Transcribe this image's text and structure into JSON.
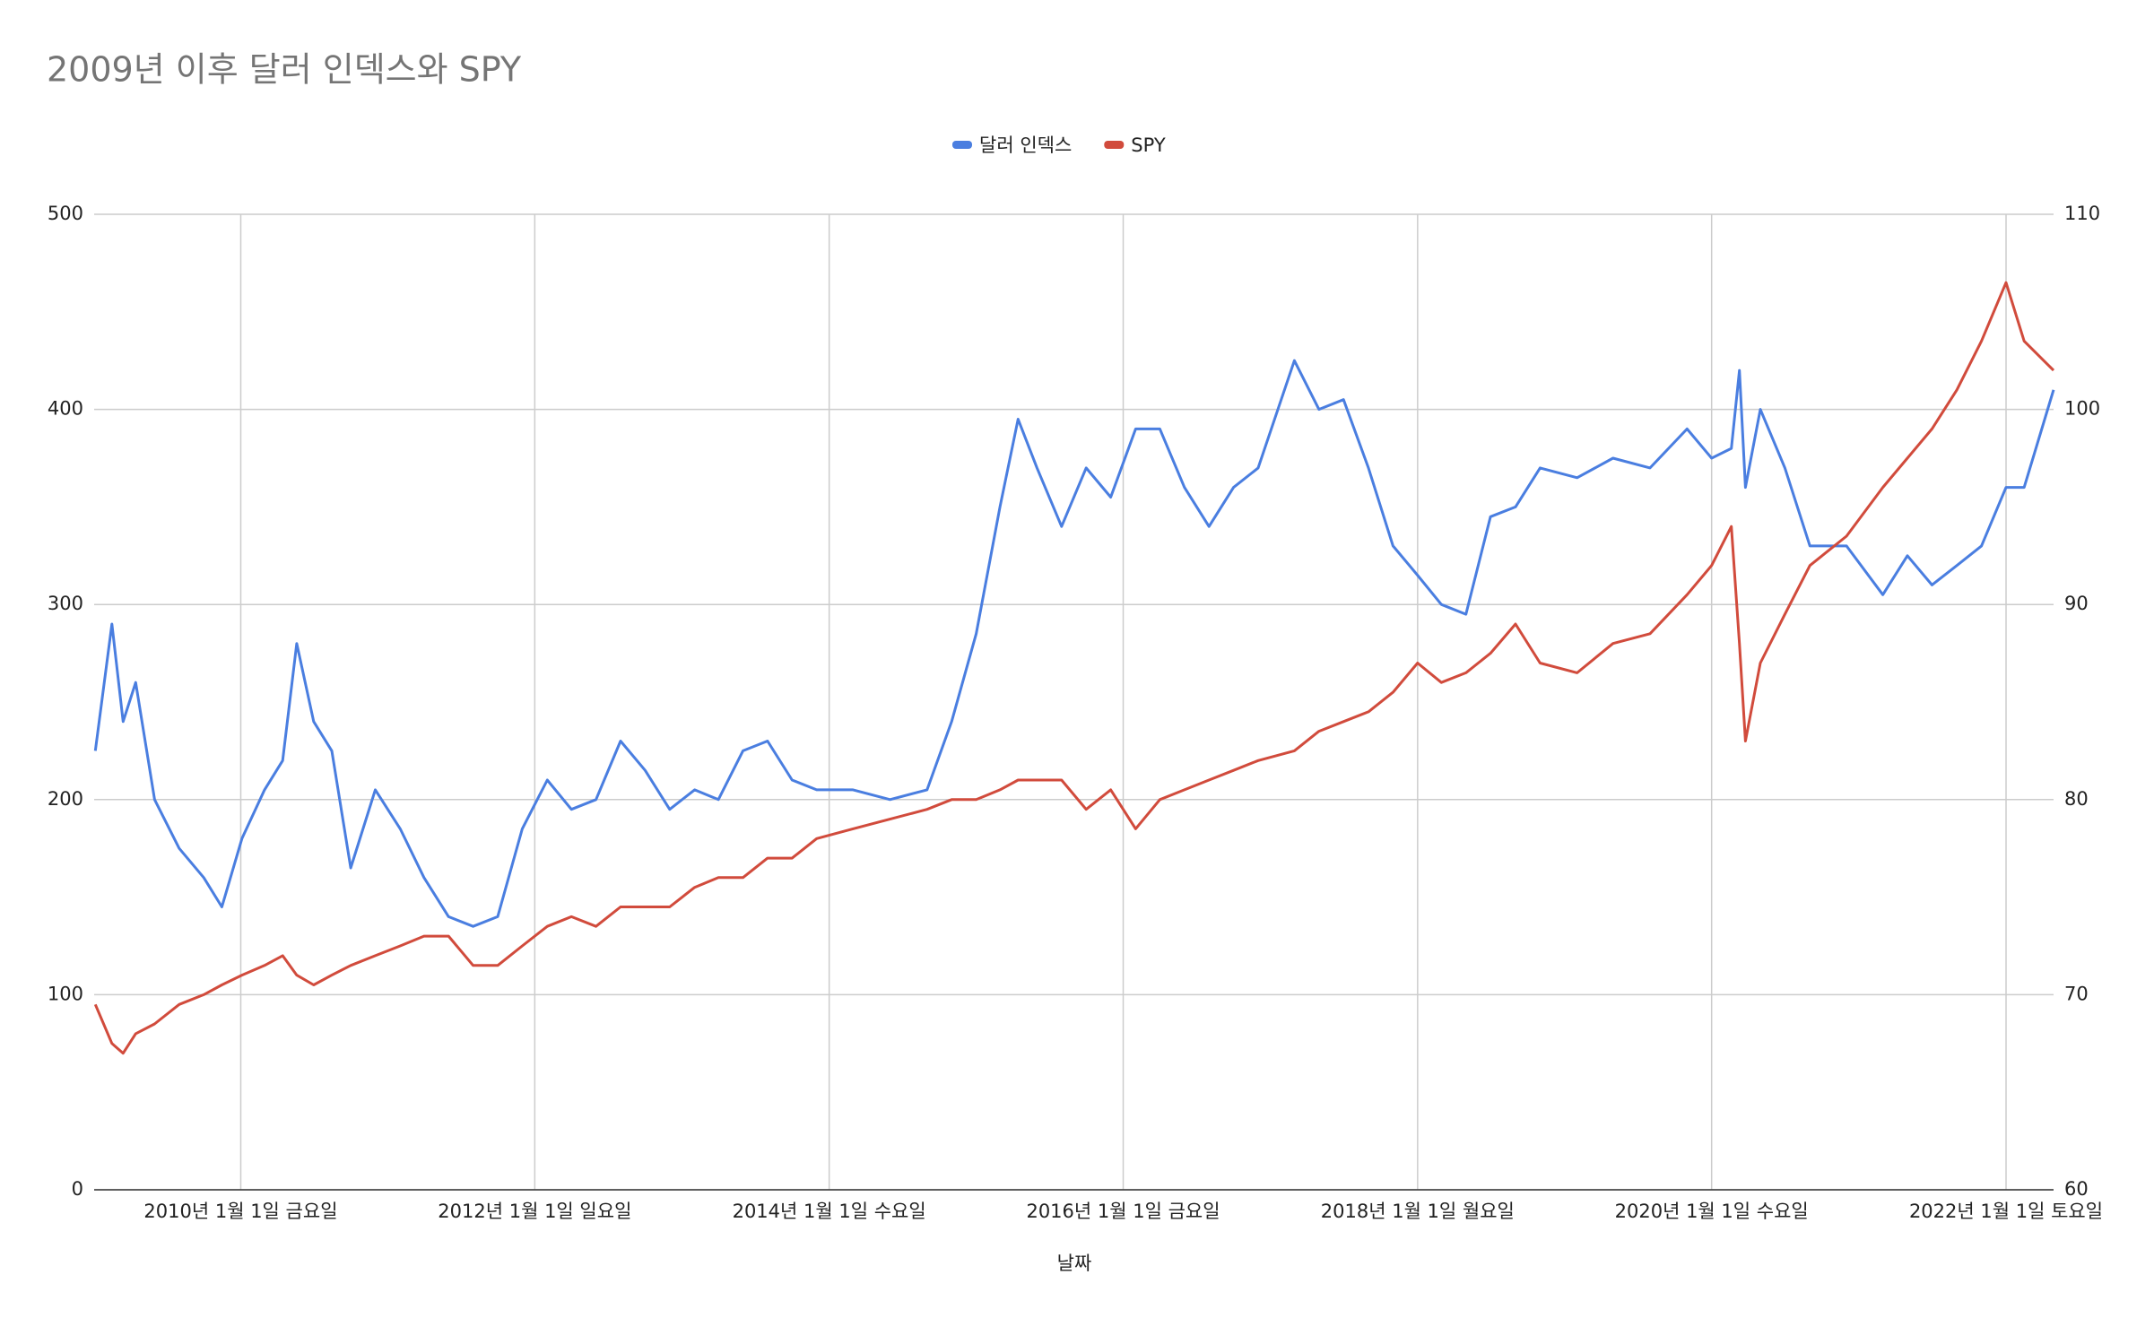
{
  "chart_data": {
    "type": "line",
    "title": "2009년 이후 달러 인덱스와 SPY",
    "x_label": "날짜",
    "x": [
      "2009-01-05",
      "2009-02-15",
      "2009-03-15",
      "2009-04-15",
      "2009-06-01",
      "2009-08-01",
      "2009-10-01",
      "2009-11-15",
      "2010-01-04",
      "2010-03-01",
      "2010-04-15",
      "2010-05-20",
      "2010-07-01",
      "2010-08-15",
      "2010-10-01",
      "2010-12-01",
      "2011-02-01",
      "2011-04-01",
      "2011-06-01",
      "2011-08-01",
      "2011-10-01",
      "2011-12-01",
      "2012-02-01",
      "2012-04-01",
      "2012-06-01",
      "2012-08-01",
      "2012-10-01",
      "2012-12-01",
      "2013-02-01",
      "2013-04-01",
      "2013-06-01",
      "2013-08-01",
      "2013-10-01",
      "2013-12-01",
      "2014-03-01",
      "2014-06-01",
      "2014-09-01",
      "2014-11-01",
      "2015-01-01",
      "2015-03-01",
      "2015-04-15",
      "2015-06-01",
      "2015-08-01",
      "2015-10-01",
      "2015-12-01",
      "2016-02-01",
      "2016-04-01",
      "2016-06-01",
      "2016-08-01",
      "2016-10-01",
      "2016-12-01",
      "2017-03-01",
      "2017-05-01",
      "2017-07-01",
      "2017-09-01",
      "2017-11-01",
      "2018-01-01",
      "2018-03-01",
      "2018-05-01",
      "2018-07-01",
      "2018-09-01",
      "2018-11-01",
      "2019-02-01",
      "2019-05-01",
      "2019-08-01",
      "2019-11-01",
      "2020-01-01",
      "2020-02-19",
      "2020-03-10",
      "2020-03-25",
      "2020-05-01",
      "2020-07-01",
      "2020-09-01",
      "2020-12-01",
      "2021-03-01",
      "2021-05-01",
      "2021-07-01",
      "2021-09-01",
      "2021-11-01",
      "2022-01-01",
      "2022-02-15",
      "2022-04-29"
    ],
    "series": [
      {
        "name": "달러 인덱스",
        "color": "#4a7ee0",
        "axis": "y",
        "values": [
          225,
          290,
          240,
          260,
          200,
          175,
          160,
          145,
          180,
          205,
          220,
          280,
          240,
          225,
          165,
          205,
          185,
          160,
          140,
          135,
          140,
          185,
          210,
          195,
          200,
          230,
          215,
          195,
          205,
          200,
          225,
          230,
          210,
          205,
          205,
          200,
          205,
          240,
          285,
          350,
          395,
          370,
          340,
          370,
          355,
          390,
          390,
          360,
          340,
          360,
          370,
          425,
          400,
          405,
          370,
          330,
          315,
          300,
          295,
          345,
          350,
          370,
          365,
          375,
          370,
          390,
          375,
          380,
          420,
          360,
          400,
          370,
          330,
          330,
          305,
          325,
          310,
          320,
          330,
          360,
          360,
          410
        ]
      },
      {
        "name": "SPY",
        "color": "#d14b3c",
        "axis": "y2",
        "values": [
          69.5,
          67.5,
          67,
          68,
          68.5,
          69.5,
          70,
          70.5,
          71,
          71.5,
          72,
          71,
          70.5,
          71,
          71.5,
          72,
          72.5,
          73,
          73,
          71.5,
          71.5,
          72.5,
          73.5,
          74,
          73.5,
          74.5,
          74.5,
          74.5,
          75.5,
          76,
          76,
          77,
          77,
          78,
          78.5,
          79,
          79.5,
          80,
          80,
          80.5,
          81,
          81,
          81,
          79.5,
          80.5,
          78.5,
          80,
          80.5,
          81,
          81.5,
          82,
          82.5,
          83.5,
          84,
          84.5,
          85.5,
          87,
          86,
          86.5,
          87.5,
          89,
          87,
          86.5,
          88,
          88.5,
          90.5,
          92,
          94,
          88,
          83,
          87,
          89.5,
          92,
          93.5,
          96,
          97.5,
          99,
          101,
          103.5,
          106.5,
          103.5,
          102
        ]
      }
    ],
    "xlim": [
      "2009-01-02",
      "2022-04-29"
    ],
    "xticks": [
      {
        "value": "2010-01-01",
        "label": "2010년 1월 1일 금요일"
      },
      {
        "value": "2012-01-01",
        "label": "2012년 1월 1일 일요일"
      },
      {
        "value": "2014-01-01",
        "label": "2014년 1월 1일 수요일"
      },
      {
        "value": "2016-01-01",
        "label": "2016년 1월 1일 금요일"
      },
      {
        "value": "2018-01-01",
        "label": "2018년 1월 1일 월요일"
      },
      {
        "value": "2020-01-01",
        "label": "2020년 1월 1일 수요일"
      },
      {
        "value": "2022-01-01",
        "label": "2022년 1월 1일 토요일"
      }
    ],
    "ylim": [
      0,
      500
    ],
    "yticks": [
      0,
      100,
      200,
      300,
      400,
      500
    ],
    "y2lim": [
      60,
      110
    ],
    "y2ticks": [
      60,
      70,
      80,
      90,
      100,
      110
    ],
    "grid": true,
    "legend": "top"
  }
}
